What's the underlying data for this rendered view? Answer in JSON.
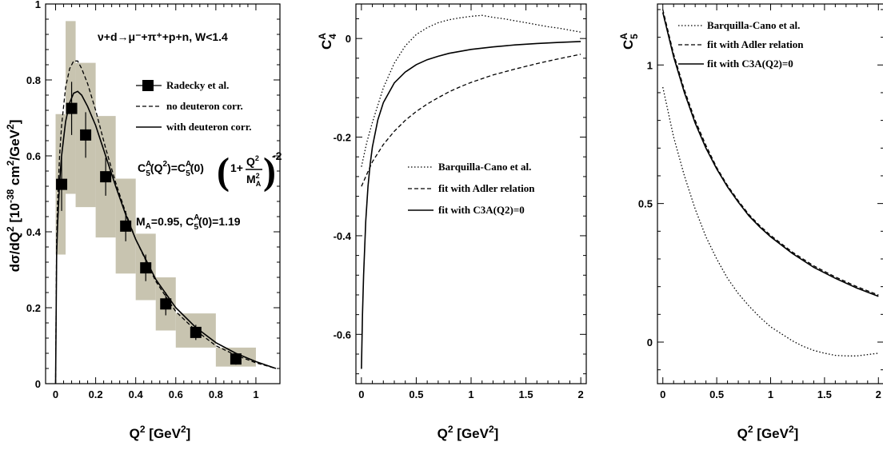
{
  "chart_data": [
    {
      "type": "scatter",
      "title": "",
      "xlabel_main": "Q",
      "xlabel_sup": "2",
      "xlabel_tail": " [GeV",
      "xlabel_tail_sup": "2",
      "xlabel_end": "]",
      "ylabel_main": "dσ/dQ",
      "ylabel_sup1": "2",
      "ylabel_mid": " [10",
      "ylabel_sup2": "-38",
      "ylabel_tail": " cm",
      "ylabel_sup3": "2",
      "ylabel_tail2": "/GeV",
      "ylabel_sup4": "2",
      "ylabel_end": "]",
      "xlim": [
        -0.05,
        1.12
      ],
      "ylim": [
        0,
        1
      ],
      "xticks": [
        0,
        0.2,
        0.4,
        0.6,
        0.8,
        1
      ],
      "xtick_labels": [
        "0",
        "0.2",
        "0.4",
        "0.6",
        "0.8",
        "1"
      ],
      "yticks": [
        0,
        0.2,
        0.4,
        0.6,
        0.8,
        1
      ],
      "ytick_labels": [
        "0",
        "0.2",
        "0.4",
        "0.6",
        "0.8",
        "1"
      ],
      "process_label": "ν+d→μ⁻+π⁺+p+n, W<1.4",
      "formula_parts": {
        "lhs": "C",
        "lhs_sup": "A",
        "lhs_sub": "5",
        "lhs_arg": "(Q",
        "lhs_arg_sup": "2",
        "lhs_arg_end": ")=C",
        "rhs_sup": "A",
        "rhs_sub": "5",
        "rhs_arg": "(0)",
        "paren_one": "1+",
        "num": "Q",
        "num_sup": "2",
        "den": "M",
        "den_sup": "2",
        "den_sub": "A",
        "exp": "-2"
      },
      "params_label_parts": {
        "p1": "M",
        "p1_sub": "A",
        "p2": "=0.95, C",
        "p2_sup": "A",
        "p2_sub": "5",
        "p3": "(0)=1.19"
      },
      "legend": [
        {
          "label": "Radecky et al.",
          "style": "marker"
        },
        {
          "label": "no deuteron corr.",
          "style": "dashed"
        },
        {
          "label": "with deuteron corr.",
          "style": "solid"
        }
      ],
      "data_points": {
        "name": "Radecky et al.",
        "x": [
          0.03,
          0.08,
          0.15,
          0.25,
          0.35,
          0.45,
          0.55,
          0.7,
          0.9
        ],
        "y": [
          0.525,
          0.725,
          0.655,
          0.545,
          0.415,
          0.305,
          0.21,
          0.135,
          0.065
        ],
        "yerr": [
          0.07,
          0.07,
          0.06,
          0.05,
          0.04,
          0.035,
          0.03,
          0.02,
          0.015
        ]
      },
      "error_bands": [
        {
          "xmin": 0.0,
          "xmax": 0.05,
          "ymin": 0.34,
          "ymax": 0.71
        },
        {
          "xmin": 0.05,
          "xmax": 0.1,
          "ymin": 0.5,
          "ymax": 0.955
        },
        {
          "xmin": 0.1,
          "xmax": 0.2,
          "ymin": 0.465,
          "ymax": 0.845
        },
        {
          "xmin": 0.2,
          "xmax": 0.3,
          "ymin": 0.385,
          "ymax": 0.705
        },
        {
          "xmin": 0.3,
          "xmax": 0.4,
          "ymin": 0.29,
          "ymax": 0.54
        },
        {
          "xmin": 0.4,
          "xmax": 0.5,
          "ymin": 0.22,
          "ymax": 0.395
        },
        {
          "xmin": 0.5,
          "xmax": 0.6,
          "ymin": 0.14,
          "ymax": 0.28
        },
        {
          "xmin": 0.6,
          "xmax": 0.8,
          "ymin": 0.095,
          "ymax": 0.185
        },
        {
          "xmin": 0.8,
          "xmax": 1.0,
          "ymin": 0.045,
          "ymax": 0.095
        }
      ],
      "series": [
        {
          "name": "no deuteron corr.",
          "style": "dashed",
          "x": [
            0.0,
            0.005,
            0.01,
            0.02,
            0.03,
            0.05,
            0.07,
            0.09,
            0.11,
            0.13,
            0.16,
            0.2,
            0.25,
            0.3,
            0.35,
            0.4,
            0.5,
            0.6,
            0.7,
            0.8,
            0.9,
            1.0,
            1.1
          ],
          "y": [
            0.0,
            0.38,
            0.48,
            0.6,
            0.68,
            0.78,
            0.83,
            0.85,
            0.85,
            0.83,
            0.79,
            0.72,
            0.62,
            0.53,
            0.45,
            0.38,
            0.27,
            0.19,
            0.14,
            0.1,
            0.075,
            0.055,
            0.04
          ]
        },
        {
          "name": "with deuteron corr.",
          "style": "solid",
          "x": [
            0.0,
            0.005,
            0.01,
            0.02,
            0.03,
            0.05,
            0.07,
            0.09,
            0.11,
            0.13,
            0.16,
            0.2,
            0.25,
            0.3,
            0.35,
            0.4,
            0.5,
            0.6,
            0.7,
            0.8,
            0.9,
            1.0,
            1.1
          ],
          "y": [
            0.0,
            0.34,
            0.42,
            0.53,
            0.6,
            0.69,
            0.74,
            0.765,
            0.77,
            0.76,
            0.73,
            0.68,
            0.6,
            0.52,
            0.445,
            0.38,
            0.275,
            0.2,
            0.148,
            0.108,
            0.08,
            0.058,
            0.04
          ]
        }
      ]
    },
    {
      "type": "line",
      "title": "",
      "ylabel": "C",
      "ylabel_sup": "A",
      "ylabel_sub": "4",
      "xlabel_main": "Q",
      "xlabel_sup": "2",
      "xlabel_tail": " [GeV",
      "xlabel_tail_sup": "2",
      "xlabel_end": "]",
      "xlim": [
        -0.05,
        2.05
      ],
      "ylim": [
        -0.7,
        0.07
      ],
      "xticks": [
        0,
        0.5,
        1,
        1.5,
        2
      ],
      "xtick_labels": [
        "0",
        "0.5",
        "1",
        "1.5",
        "2"
      ],
      "yticks": [
        -0.6,
        -0.4,
        -0.2,
        0
      ],
      "ytick_labels": [
        "-0.6",
        "-0.4",
        "-0.2",
        "0"
      ],
      "legend": [
        {
          "label": "Barquilla-Cano et al.",
          "style": "dotted"
        },
        {
          "label": "fit with Adler relation",
          "style": "dashed"
        },
        {
          "label": "fit with C3A(Q2)=0",
          "style": "solid"
        }
      ],
      "series": [
        {
          "name": "Barquilla-Cano et al.",
          "style": "dotted",
          "x": [
            0.0,
            0.05,
            0.1,
            0.2,
            0.3,
            0.4,
            0.5,
            0.6,
            0.7,
            0.8,
            0.9,
            1.0,
            1.1,
            1.2,
            1.3,
            1.4,
            1.5,
            1.6,
            1.7,
            1.8,
            1.9,
            2.0
          ],
          "y": [
            -0.26,
            -0.21,
            -0.17,
            -0.1,
            -0.05,
            -0.015,
            0.008,
            0.022,
            0.032,
            0.038,
            0.042,
            0.045,
            0.047,
            0.043,
            0.04,
            0.036,
            0.032,
            0.028,
            0.024,
            0.021,
            0.017,
            0.013
          ]
        },
        {
          "name": "fit with Adler relation",
          "style": "dashed",
          "x": [
            0.0,
            0.05,
            0.1,
            0.2,
            0.3,
            0.4,
            0.5,
            0.6,
            0.7,
            0.8,
            0.9,
            1.0,
            1.2,
            1.4,
            1.6,
            1.8,
            2.0
          ],
          "y": [
            -0.3,
            -0.275,
            -0.25,
            -0.215,
            -0.188,
            -0.166,
            -0.148,
            -0.133,
            -0.12,
            -0.108,
            -0.098,
            -0.089,
            -0.074,
            -0.062,
            -0.051,
            -0.041,
            -0.032
          ]
        },
        {
          "name": "fit with C3A(Q2)=0",
          "style": "solid",
          "x": [
            0.0,
            0.01,
            0.02,
            0.04,
            0.06,
            0.08,
            0.1,
            0.15,
            0.2,
            0.3,
            0.4,
            0.5,
            0.6,
            0.7,
            0.8,
            1.0,
            1.2,
            1.4,
            1.6,
            1.8,
            2.0
          ],
          "y": [
            -0.67,
            -0.56,
            -0.48,
            -0.37,
            -0.3,
            -0.255,
            -0.22,
            -0.165,
            -0.13,
            -0.09,
            -0.068,
            -0.053,
            -0.043,
            -0.036,
            -0.03,
            -0.022,
            -0.017,
            -0.013,
            -0.01,
            -0.008,
            -0.006
          ]
        }
      ]
    },
    {
      "type": "line",
      "title": "",
      "ylabel": "C",
      "ylabel_sup": "A",
      "ylabel_sub": "5",
      "xlabel_main": "Q",
      "xlabel_sup": "2",
      "xlabel_tail": " [GeV",
      "xlabel_tail_sup": "2",
      "xlabel_end": "]",
      "xlim": [
        -0.05,
        2.05
      ],
      "ylim": [
        -0.15,
        1.22
      ],
      "xticks": [
        0,
        0.5,
        1,
        1.5,
        2
      ],
      "xtick_labels": [
        "0",
        "0.5",
        "1",
        "1.5",
        "2"
      ],
      "yticks": [
        0,
        0.5,
        1
      ],
      "ytick_labels": [
        "0",
        "0.5",
        "1"
      ],
      "legend": [
        {
          "label": "Barquilla-Cano et al.",
          "style": "dotted"
        },
        {
          "label": "fit with Adler relation",
          "style": "dashed"
        },
        {
          "label": "fit with C3A(Q2)=0",
          "style": "solid"
        }
      ],
      "series": [
        {
          "name": "Barquilla-Cano et al.",
          "style": "dotted",
          "x": [
            0.0,
            0.1,
            0.2,
            0.3,
            0.4,
            0.5,
            0.6,
            0.7,
            0.8,
            0.9,
            1.0,
            1.1,
            1.2,
            1.3,
            1.4,
            1.5,
            1.6,
            1.7,
            1.8,
            1.9,
            2.0
          ],
          "y": [
            0.92,
            0.74,
            0.6,
            0.48,
            0.38,
            0.3,
            0.23,
            0.175,
            0.13,
            0.09,
            0.055,
            0.03,
            0.005,
            -0.015,
            -0.03,
            -0.04,
            -0.048,
            -0.05,
            -0.05,
            -0.045,
            -0.04
          ]
        },
        {
          "name": "fit with Adler relation",
          "style": "dashed",
          "x": [
            0.0,
            0.1,
            0.2,
            0.3,
            0.4,
            0.5,
            0.6,
            0.7,
            0.8,
            0.9,
            1.0,
            1.2,
            1.4,
            1.6,
            1.8,
            2.0
          ],
          "y": [
            1.2,
            1.04,
            0.91,
            0.8,
            0.71,
            0.63,
            0.565,
            0.51,
            0.46,
            0.42,
            0.385,
            0.325,
            0.275,
            0.235,
            0.2,
            0.17
          ]
        },
        {
          "name": "fit with C3A(Q2)=0",
          "style": "solid",
          "x": [
            0.0,
            0.1,
            0.2,
            0.3,
            0.4,
            0.5,
            0.6,
            0.7,
            0.8,
            0.9,
            1.0,
            1.2,
            1.4,
            1.6,
            1.8,
            2.0
          ],
          "y": [
            1.19,
            1.03,
            0.9,
            0.79,
            0.7,
            0.625,
            0.56,
            0.505,
            0.455,
            0.415,
            0.38,
            0.32,
            0.27,
            0.23,
            0.195,
            0.165
          ]
        }
      ]
    }
  ]
}
